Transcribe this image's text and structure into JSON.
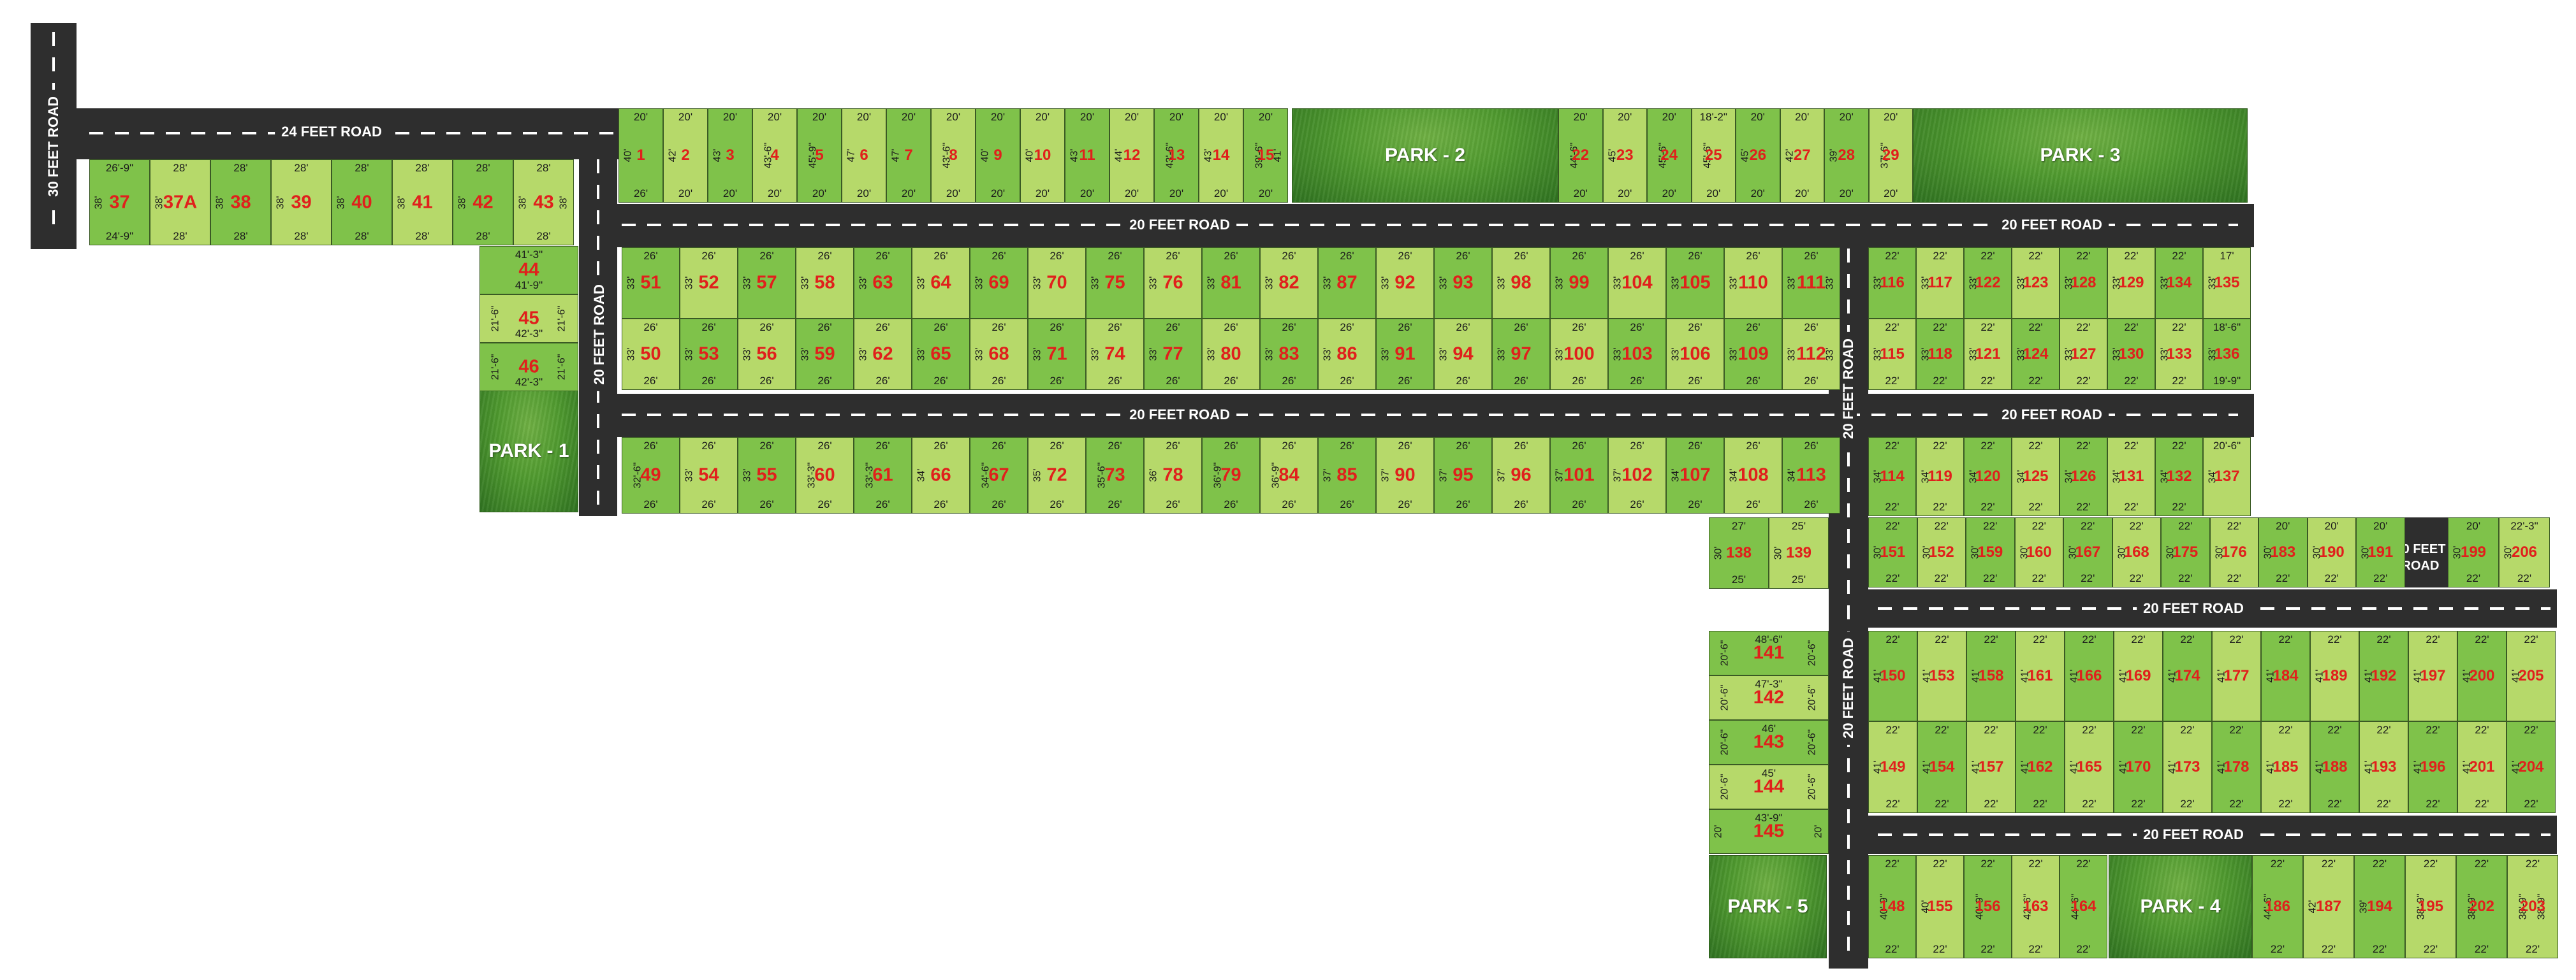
{
  "colors": {
    "road": "#2e2e2e",
    "plot_dark": "#7fc24a",
    "plot_light": "#b6d96a",
    "plot_number": "#e0201c",
    "park": "#4f9a2f"
  },
  "roads": {
    "r30_vertical": "30 FEET ROAD",
    "r24": "24 FEET ROAD",
    "r20_top": "20 FEET ROAD",
    "r20_top_right": "20 FEET ROAD",
    "r20_mid": "20 FEET ROAD",
    "r20_mid_right": "20 FEET ROAD",
    "r20_left_vertical": "20 FEET ROAD",
    "r20_center_vertical_top": "20 FEET ROAD",
    "r20_center_vertical_bottom": "20 FEET ROAD",
    "r20_lower_a": "20 FEET ROAD",
    "r20_lower_b": "20 FEET ROAD",
    "r30_small": "30 FEET ROAD"
  },
  "parks": {
    "p1": "PARK - 1",
    "p2": "PARK - 2",
    "p3": "PARK - 3",
    "p4": "PARK - 4",
    "p5": "PARK - 5"
  },
  "plots": [
    {
      "n": "37",
      "t": "26'-9\"",
      "b": "24'-9\"",
      "l": "38'",
      "r": ""
    },
    {
      "n": "37A",
      "t": "28'",
      "b": "28'",
      "l": "38'",
      "r": ""
    },
    {
      "n": "38",
      "t": "28'",
      "b": "28'",
      "l": "38'",
      "r": ""
    },
    {
      "n": "39",
      "t": "28'",
      "b": "28'",
      "l": "38'",
      "r": ""
    },
    {
      "n": "40",
      "t": "28'",
      "b": "28'",
      "l": "38'",
      "r": ""
    },
    {
      "n": "41",
      "t": "28'",
      "b": "28'",
      "l": "38'",
      "r": ""
    },
    {
      "n": "42",
      "t": "28'",
      "b": "28'",
      "l": "38'",
      "r": ""
    },
    {
      "n": "43",
      "t": "28'",
      "b": "28'",
      "l": "38'",
      "r": "38'"
    },
    {
      "n": "44",
      "t": "41'-3\"",
      "b": "41'-9\"",
      "l": "",
      "r": ""
    },
    {
      "n": "45",
      "t": "",
      "b": "42'-3\"",
      "l": "21'-6\"",
      "r": "21'-6\""
    },
    {
      "n": "46",
      "t": "",
      "b": "42'-3\"",
      "l": "21'-6\"",
      "r": "21'-6\""
    },
    {
      "n": "1",
      "t": "20'",
      "b": "26'",
      "l": "40'",
      "r": ""
    },
    {
      "n": "2",
      "t": "20'",
      "b": "20'",
      "l": "42'",
      "r": ""
    },
    {
      "n": "3",
      "t": "20'",
      "b": "20'",
      "l": "43'",
      "r": ""
    },
    {
      "n": "4",
      "t": "20'",
      "b": "20'",
      "l": "43'-6\"",
      "r": ""
    },
    {
      "n": "5",
      "t": "20'",
      "b": "20'",
      "l": "45'-9\"",
      "r": ""
    },
    {
      "n": "6",
      "t": "20'",
      "b": "20'",
      "l": "47'",
      "r": ""
    },
    {
      "n": "7",
      "t": "20'",
      "b": "20'",
      "l": "47'",
      "r": ""
    },
    {
      "n": "8",
      "t": "20'",
      "b": "20'",
      "l": "43'-6\"",
      "r": ""
    },
    {
      "n": "9",
      "t": "20'",
      "b": "20'",
      "l": "40'",
      "r": ""
    },
    {
      "n": "10",
      "t": "20'",
      "b": "20'",
      "l": "40'",
      "r": ""
    },
    {
      "n": "11",
      "t": "20'",
      "b": "20'",
      "l": "43'",
      "r": ""
    },
    {
      "n": "12",
      "t": "20'",
      "b": "20'",
      "l": "44'",
      "r": ""
    },
    {
      "n": "13",
      "t": "20'",
      "b": "20'",
      "l": "43'-6\"",
      "r": ""
    },
    {
      "n": "14",
      "t": "20'",
      "b": "20'",
      "l": "43'",
      "r": ""
    },
    {
      "n": "15",
      "t": "20'",
      "b": "20'",
      "l": "39'-6\"",
      "r": "41'"
    },
    {
      "n": "22",
      "t": "20'",
      "b": "20'",
      "l": "44'-6\"",
      "r": ""
    },
    {
      "n": "23",
      "t": "20'",
      "b": "20'",
      "l": "45'",
      "r": ""
    },
    {
      "n": "24",
      "t": "20'",
      "b": "20'",
      "l": "45'-6\"",
      "r": ""
    },
    {
      "n": "25",
      "t": "18'-2\"",
      "b": "20'",
      "l": "45'-6\"",
      "r": ""
    },
    {
      "n": "26",
      "t": "20'",
      "b": "20'",
      "l": "45'",
      "r": ""
    },
    {
      "n": "27",
      "t": "20'",
      "b": "20'",
      "l": "42'",
      "r": ""
    },
    {
      "n": "28",
      "t": "20'",
      "b": "20'",
      "l": "39'",
      "r": ""
    },
    {
      "n": "29",
      "t": "20'",
      "b": "20'",
      "l": "37'-6\"",
      "r": ""
    },
    {
      "n": "51",
      "t": "26'",
      "b": "",
      "l": "33'",
      "r": ""
    },
    {
      "n": "52",
      "t": "26'",
      "b": "",
      "l": "33'",
      "r": ""
    },
    {
      "n": "57",
      "t": "26'",
      "b": "",
      "l": "33'",
      "r": ""
    },
    {
      "n": "58",
      "t": "26'",
      "b": "",
      "l": "33'",
      "r": ""
    },
    {
      "n": "63",
      "t": "26'",
      "b": "",
      "l": "33'",
      "r": ""
    },
    {
      "n": "64",
      "t": "26'",
      "b": "",
      "l": "33'",
      "r": ""
    },
    {
      "n": "69",
      "t": "26'",
      "b": "",
      "l": "33'",
      "r": ""
    },
    {
      "n": "70",
      "t": "26'",
      "b": "",
      "l": "33'",
      "r": ""
    },
    {
      "n": "75",
      "t": "26'",
      "b": "",
      "l": "33'",
      "r": ""
    },
    {
      "n": "76",
      "t": "26'",
      "b": "",
      "l": "33'",
      "r": ""
    },
    {
      "n": "81",
      "t": "26'",
      "b": "",
      "l": "33'",
      "r": ""
    },
    {
      "n": "82",
      "t": "26'",
      "b": "",
      "l": "33'",
      "r": ""
    },
    {
      "n": "87",
      "t": "26'",
      "b": "",
      "l": "33'",
      "r": ""
    },
    {
      "n": "92",
      "t": "26'",
      "b": "",
      "l": "33'",
      "r": ""
    },
    {
      "n": "93",
      "t": "26'",
      "b": "",
      "l": "33'",
      "r": ""
    },
    {
      "n": "98",
      "t": "26'",
      "b": "",
      "l": "33'",
      "r": ""
    },
    {
      "n": "99",
      "t": "26'",
      "b": "",
      "l": "33'",
      "r": ""
    },
    {
      "n": "104",
      "t": "26'",
      "b": "",
      "l": "33'",
      "r": ""
    },
    {
      "n": "105",
      "t": "26'",
      "b": "",
      "l": "33'",
      "r": ""
    },
    {
      "n": "110",
      "t": "26'",
      "b": "",
      "l": "33'",
      "r": ""
    },
    {
      "n": "111",
      "t": "26'",
      "b": "",
      "l": "33'",
      "r": "33'"
    },
    {
      "n": "50",
      "t": "26'",
      "b": "26'",
      "l": "33'",
      "r": ""
    },
    {
      "n": "53",
      "t": "26'",
      "b": "26'",
      "l": "33'",
      "r": ""
    },
    {
      "n": "56",
      "t": "26'",
      "b": "26'",
      "l": "33'",
      "r": ""
    },
    {
      "n": "59",
      "t": "26'",
      "b": "26'",
      "l": "33'",
      "r": ""
    },
    {
      "n": "62",
      "t": "26'",
      "b": "26'",
      "l": "33'",
      "r": ""
    },
    {
      "n": "65",
      "t": "26'",
      "b": "26'",
      "l": "33'",
      "r": ""
    },
    {
      "n": "68",
      "t": "26'",
      "b": "26'",
      "l": "33'",
      "r": ""
    },
    {
      "n": "71",
      "t": "26'",
      "b": "26'",
      "l": "33'",
      "r": ""
    },
    {
      "n": "74",
      "t": "26'",
      "b": "26'",
      "l": "33'",
      "r": ""
    },
    {
      "n": "77",
      "t": "26'",
      "b": "26'",
      "l": "33'",
      "r": ""
    },
    {
      "n": "80",
      "t": "26'",
      "b": "26'",
      "l": "33'",
      "r": ""
    },
    {
      "n": "83",
      "t": "26'",
      "b": "26'",
      "l": "33'",
      "r": ""
    },
    {
      "n": "86",
      "t": "26'",
      "b": "26'",
      "l": "33'",
      "r": ""
    },
    {
      "n": "91",
      "t": "26'",
      "b": "26'",
      "l": "33'",
      "r": ""
    },
    {
      "n": "94",
      "t": "26'",
      "b": "26'",
      "l": "33'",
      "r": ""
    },
    {
      "n": "97",
      "t": "26'",
      "b": "26'",
      "l": "33'",
      "r": ""
    },
    {
      "n": "100",
      "t": "26'",
      "b": "26'",
      "l": "33'",
      "r": ""
    },
    {
      "n": "103",
      "t": "26'",
      "b": "26'",
      "l": "33'",
      "r": ""
    },
    {
      "n": "106",
      "t": "26'",
      "b": "26'",
      "l": "33'",
      "r": ""
    },
    {
      "n": "109",
      "t": "26'",
      "b": "26'",
      "l": "33'",
      "r": ""
    },
    {
      "n": "112",
      "t": "26'",
      "b": "26'",
      "l": "33'",
      "r": "33'"
    },
    {
      "n": "49",
      "t": "26'",
      "b": "26'",
      "l": "32'-6\"",
      "r": ""
    },
    {
      "n": "54",
      "t": "26'",
      "b": "26'",
      "l": "33'",
      "r": ""
    },
    {
      "n": "55",
      "t": "26'",
      "b": "26'",
      "l": "33'",
      "r": ""
    },
    {
      "n": "60",
      "t": "26'",
      "b": "26'",
      "l": "33'-3\"",
      "r": ""
    },
    {
      "n": "61",
      "t": "26'",
      "b": "26'",
      "l": "33'-3\"",
      "r": ""
    },
    {
      "n": "66",
      "t": "26'",
      "b": "26'",
      "l": "34'",
      "r": ""
    },
    {
      "n": "67",
      "t": "26'",
      "b": "26'",
      "l": "34'-6\"",
      "r": ""
    },
    {
      "n": "72",
      "t": "26'",
      "b": "26'",
      "l": "35'",
      "r": ""
    },
    {
      "n": "73",
      "t": "26'",
      "b": "26'",
      "l": "35'-6\"",
      "r": ""
    },
    {
      "n": "78",
      "t": "26'",
      "b": "26'",
      "l": "36'",
      "r": ""
    },
    {
      "n": "79",
      "t": "26'",
      "b": "26'",
      "l": "36'-9\"",
      "r": ""
    },
    {
      "n": "84",
      "t": "26'",
      "b": "26'",
      "l": "36'-9\"",
      "r": ""
    },
    {
      "n": "85",
      "t": "26'",
      "b": "26'",
      "l": "37'",
      "r": ""
    },
    {
      "n": "90",
      "t": "26'",
      "b": "26'",
      "l": "37'",
      "r": ""
    },
    {
      "n": "95",
      "t": "26'",
      "b": "26'",
      "l": "37'",
      "r": ""
    },
    {
      "n": "96",
      "t": "26'",
      "b": "26'",
      "l": "37'",
      "r": ""
    },
    {
      "n": "101",
      "t": "26'",
      "b": "26'",
      "l": "37'",
      "r": ""
    },
    {
      "n": "102",
      "t": "26'",
      "b": "26'",
      "l": "37'",
      "r": ""
    },
    {
      "n": "107",
      "t": "26'",
      "b": "26'",
      "l": "34'",
      "r": ""
    },
    {
      "n": "108",
      "t": "26'",
      "b": "26'",
      "l": "34'",
      "r": ""
    },
    {
      "n": "113",
      "t": "26'",
      "b": "26'",
      "l": "34'",
      "r": ""
    },
    {
      "n": "116",
      "t": "22'",
      "b": "",
      "l": "33'",
      "r": ""
    },
    {
      "n": "117",
      "t": "22'",
      "b": "",
      "l": "33'",
      "r": ""
    },
    {
      "n": "122",
      "t": "22'",
      "b": "",
      "l": "33'",
      "r": ""
    },
    {
      "n": "123",
      "t": "22'",
      "b": "",
      "l": "33'",
      "r": ""
    },
    {
      "n": "128",
      "t": "22'",
      "b": "",
      "l": "33'",
      "r": ""
    },
    {
      "n": "129",
      "t": "22'",
      "b": "",
      "l": "33'",
      "r": ""
    },
    {
      "n": "134",
      "t": "22'",
      "b": "",
      "l": "33'",
      "r": ""
    },
    {
      "n": "135",
      "t": "17'",
      "b": "",
      "l": "33'",
      "r": ""
    },
    {
      "n": "115",
      "t": "22'",
      "b": "22'",
      "l": "33'",
      "r": ""
    },
    {
      "n": "118",
      "t": "22'",
      "b": "22'",
      "l": "33'",
      "r": ""
    },
    {
      "n": "121",
      "t": "22'",
      "b": "22'",
      "l": "33'",
      "r": ""
    },
    {
      "n": "124",
      "t": "22'",
      "b": "22'",
      "l": "33'",
      "r": ""
    },
    {
      "n": "127",
      "t": "22'",
      "b": "22'",
      "l": "33'",
      "r": ""
    },
    {
      "n": "130",
      "t": "22'",
      "b": "22'",
      "l": "33'",
      "r": ""
    },
    {
      "n": "133",
      "t": "22'",
      "b": "22'",
      "l": "33'",
      "r": ""
    },
    {
      "n": "136",
      "t": "18'-6\"",
      "b": "19'-9\"",
      "l": "33'",
      "r": ""
    },
    {
      "n": "114",
      "t": "22'",
      "b": "22'",
      "l": "34'",
      "r": ""
    },
    {
      "n": "119",
      "t": "22'",
      "b": "22'",
      "l": "34'",
      "r": ""
    },
    {
      "n": "120",
      "t": "22'",
      "b": "22'",
      "l": "34'",
      "r": ""
    },
    {
      "n": "125",
      "t": "22'",
      "b": "22'",
      "l": "34'",
      "r": ""
    },
    {
      "n": "126",
      "t": "22'",
      "b": "22'",
      "l": "34'",
      "r": ""
    },
    {
      "n": "131",
      "t": "22'",
      "b": "22'",
      "l": "34'",
      "r": ""
    },
    {
      "n": "132",
      "t": "22'",
      "b": "22'",
      "l": "34'",
      "r": ""
    },
    {
      "n": "137",
      "t": "20'-6\"",
      "b": "",
      "l": "34'",
      "r": ""
    },
    {
      "n": "138",
      "t": "27'",
      "b": "25'",
      "l": "30'",
      "r": ""
    },
    {
      "n": "139",
      "t": "25'",
      "b": "25'",
      "l": "30'",
      "r": ""
    },
    {
      "n": "151",
      "t": "22'",
      "b": "22'",
      "l": "30'",
      "r": ""
    },
    {
      "n": "152",
      "t": "22'",
      "b": "22'",
      "l": "30'",
      "r": ""
    },
    {
      "n": "159",
      "t": "22'",
      "b": "22'",
      "l": "30'",
      "r": ""
    },
    {
      "n": "160",
      "t": "22'",
      "b": "22'",
      "l": "30'",
      "r": ""
    },
    {
      "n": "167",
      "t": "22'",
      "b": "22'",
      "l": "30'",
      "r": ""
    },
    {
      "n": "168",
      "t": "22'",
      "b": "22'",
      "l": "30'",
      "r": ""
    },
    {
      "n": "175",
      "t": "22'",
      "b": "22'",
      "l": "30'",
      "r": ""
    },
    {
      "n": "176",
      "t": "22'",
      "b": "22'",
      "l": "30'",
      "r": ""
    },
    {
      "n": "183",
      "t": "20'",
      "b": "22'",
      "l": "30'",
      "r": ""
    },
    {
      "n": "190",
      "t": "20'",
      "b": "22'",
      "l": "30'",
      "r": ""
    },
    {
      "n": "191",
      "t": "20'",
      "b": "22'",
      "l": "30'",
      "r": ""
    },
    {
      "n": "199",
      "t": "20'",
      "b": "22'",
      "l": "30'",
      "r": ""
    },
    {
      "n": "206",
      "t": "22'-3\"",
      "b": "22'",
      "l": "30'",
      "r": ""
    },
    {
      "n": "141",
      "t": "48'-6\"",
      "b": "",
      "l": "20'-6\"",
      "r": "20'-6\""
    },
    {
      "n": "142",
      "t": "47'-3\"",
      "b": "",
      "l": "20'-6\"",
      "r": "20'-6\""
    },
    {
      "n": "143",
      "t": "46'",
      "b": "",
      "l": "20'-6\"",
      "r": "20'-6\""
    },
    {
      "n": "144",
      "t": "45'",
      "b": "",
      "l": "20'-6\"",
      "r": "20'-6\""
    },
    {
      "n": "145",
      "t": "43'-9\"",
      "b": "",
      "l": "20'",
      "r": "20'"
    },
    {
      "n": "150",
      "t": "22'",
      "b": "",
      "l": "41'",
      "r": ""
    },
    {
      "n": "153",
      "t": "22'",
      "b": "",
      "l": "41'",
      "r": ""
    },
    {
      "n": "158",
      "t": "22'",
      "b": "",
      "l": "41'",
      "r": ""
    },
    {
      "n": "161",
      "t": "22'",
      "b": "",
      "l": "41'",
      "r": ""
    },
    {
      "n": "166",
      "t": "22'",
      "b": "",
      "l": "41'",
      "r": ""
    },
    {
      "n": "169",
      "t": "22'",
      "b": "",
      "l": "41'",
      "r": ""
    },
    {
      "n": "174",
      "t": "22'",
      "b": "",
      "l": "41'",
      "r": ""
    },
    {
      "n": "177",
      "t": "22'",
      "b": "",
      "l": "41'",
      "r": ""
    },
    {
      "n": "184",
      "t": "22'",
      "b": "",
      "l": "41'",
      "r": ""
    },
    {
      "n": "189",
      "t": "22'",
      "b": "",
      "l": "41'",
      "r": ""
    },
    {
      "n": "192",
      "t": "22'",
      "b": "",
      "l": "41'",
      "r": ""
    },
    {
      "n": "197",
      "t": "22'",
      "b": "",
      "l": "41'",
      "r": ""
    },
    {
      "n": "200",
      "t": "22'",
      "b": "",
      "l": "41'",
      "r": ""
    },
    {
      "n": "205",
      "t": "22'",
      "b": "",
      "l": "41'",
      "r": ""
    },
    {
      "n": "149",
      "t": "22'",
      "b": "22'",
      "l": "41'",
      "r": ""
    },
    {
      "n": "154",
      "t": "22'",
      "b": "22'",
      "l": "41'",
      "r": ""
    },
    {
      "n": "157",
      "t": "22'",
      "b": "22'",
      "l": "41'",
      "r": ""
    },
    {
      "n": "162",
      "t": "22'",
      "b": "22'",
      "l": "41'",
      "r": ""
    },
    {
      "n": "165",
      "t": "22'",
      "b": "22'",
      "l": "41'",
      "r": ""
    },
    {
      "n": "170",
      "t": "22'",
      "b": "22'",
      "l": "41'",
      "r": ""
    },
    {
      "n": "173",
      "t": "22'",
      "b": "22'",
      "l": "41'",
      "r": ""
    },
    {
      "n": "178",
      "t": "22'",
      "b": "22'",
      "l": "41'",
      "r": ""
    },
    {
      "n": "185",
      "t": "22'",
      "b": "22'",
      "l": "41'",
      "r": ""
    },
    {
      "n": "188",
      "t": "22'",
      "b": "22'",
      "l": "41'",
      "r": ""
    },
    {
      "n": "193",
      "t": "22'",
      "b": "22'",
      "l": "41'",
      "r": ""
    },
    {
      "n": "196",
      "t": "22'",
      "b": "22'",
      "l": "41'",
      "r": ""
    },
    {
      "n": "201",
      "t": "22'",
      "b": "22'",
      "l": "41'",
      "r": ""
    },
    {
      "n": "204",
      "t": "22'",
      "b": "22'",
      "l": "41'",
      "r": ""
    },
    {
      "n": "148",
      "t": "22'",
      "b": "22'",
      "l": "40'-9\"",
      "r": ""
    },
    {
      "n": "155",
      "t": "22'",
      "b": "22'",
      "l": "40'",
      "r": ""
    },
    {
      "n": "156",
      "t": "22'",
      "b": "22'",
      "l": "40'-9\"",
      "r": ""
    },
    {
      "n": "163",
      "t": "22'",
      "b": "22'",
      "l": "42'-6\"",
      "r": ""
    },
    {
      "n": "164",
      "t": "22'",
      "b": "22'",
      "l": "44'-6\"",
      "r": ""
    },
    {
      "n": "186",
      "t": "22'",
      "b": "22'",
      "l": "44'-6\"",
      "r": ""
    },
    {
      "n": "187",
      "t": "22'",
      "b": "22'",
      "l": "42'",
      "r": ""
    },
    {
      "n": "194",
      "t": "22'",
      "b": "22'",
      "l": "39'",
      "r": ""
    },
    {
      "n": "195",
      "t": "22'",
      "b": "22'",
      "l": "38'-9\"",
      "r": ""
    },
    {
      "n": "202",
      "t": "22'",
      "b": "22'",
      "l": "38'-9\"",
      "r": ""
    },
    {
      "n": "203",
      "t": "22'",
      "b": "22'",
      "l": "38'-9\"",
      "r": "38'-9\""
    }
  ]
}
